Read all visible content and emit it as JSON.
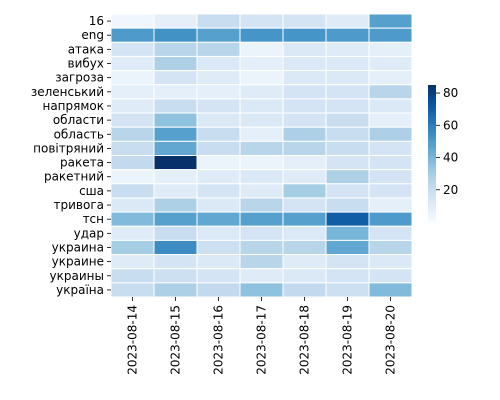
{
  "chart_data": {
    "type": "heatmap",
    "title": "",
    "xlabel": "",
    "ylabel": "",
    "x_labels": [
      "2023-08-14",
      "2023-08-15",
      "2023-08-16",
      "2023-08-17",
      "2023-08-18",
      "2023-08-19",
      "2023-08-20"
    ],
    "y_labels": [
      "16",
      "eng",
      "атака",
      "вибух",
      "загроза",
      "зеленський",
      "напрямок",
      "области",
      "область",
      "повітряний",
      "ракета",
      "ракетний",
      "сша",
      "тривога",
      "тсн",
      "удар",
      "украина",
      "украине",
      "украины",
      "україна"
    ],
    "values": [
      [
        3,
        8,
        20,
        15,
        15,
        10,
        48
      ],
      [
        50,
        53,
        48,
        52,
        52,
        50,
        50
      ],
      [
        15,
        25,
        25,
        5,
        12,
        10,
        8
      ],
      [
        10,
        28,
        12,
        8,
        12,
        12,
        10
      ],
      [
        5,
        15,
        10,
        5,
        12,
        12,
        8
      ],
      [
        8,
        8,
        8,
        10,
        15,
        15,
        25
      ],
      [
        10,
        20,
        15,
        12,
        15,
        15,
        12
      ],
      [
        15,
        35,
        12,
        12,
        15,
        20,
        8
      ],
      [
        25,
        48,
        20,
        8,
        28,
        20,
        28
      ],
      [
        20,
        45,
        20,
        25,
        25,
        20,
        15
      ],
      [
        22,
        85,
        5,
        5,
        8,
        15,
        15
      ],
      [
        5,
        8,
        10,
        12,
        10,
        28,
        15
      ],
      [
        20,
        10,
        15,
        10,
        30,
        15,
        15
      ],
      [
        12,
        28,
        12,
        25,
        15,
        20,
        8
      ],
      [
        38,
        48,
        45,
        48,
        48,
        70,
        50
      ],
      [
        10,
        20,
        12,
        15,
        12,
        40,
        15
      ],
      [
        30,
        55,
        18,
        25,
        25,
        45,
        25
      ],
      [
        10,
        15,
        12,
        25,
        10,
        15,
        12
      ],
      [
        20,
        18,
        15,
        10,
        12,
        15,
        15
      ],
      [
        20,
        28,
        22,
        35,
        22,
        18,
        38
      ]
    ],
    "colorbar": {
      "min": 0,
      "max": 85,
      "ticks": [
        20,
        40,
        60,
        80
      ]
    },
    "colormap": [
      "#f7fbff",
      "#deebf7",
      "#c6dbef",
      "#9ecae1",
      "#6baed6",
      "#4292c6",
      "#2171b5",
      "#08519c",
      "#08306b"
    ],
    "grid": false,
    "legend": "colorbar-right"
  }
}
